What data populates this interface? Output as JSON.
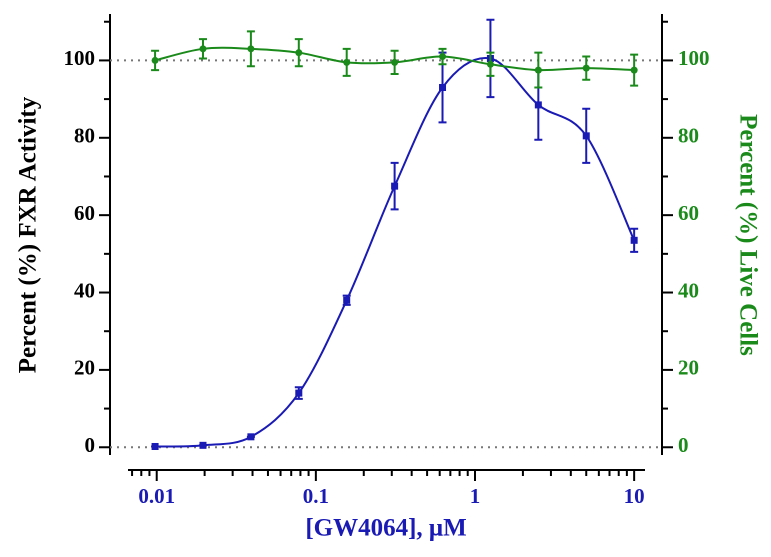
{
  "chart_data": {
    "type": "line",
    "xlabel": "[GW4064], μM",
    "ylabel": "Percent (%) FXR Activity",
    "y2label": "Percent (%) Live Cells",
    "x": [
      0.009765625,
      0.01953125,
      0.0390625,
      0.078125,
      0.15625,
      0.3125,
      0.625,
      1.25,
      2.5,
      5,
      10
    ],
    "series": [
      {
        "name": "FXR Activity",
        "color": "#1a1ab4",
        "marker": "square",
        "values": [
          0.2,
          0.5,
          2.7,
          14,
          38,
          67.5,
          93,
          100.5,
          88.5,
          80.5,
          53.5
        ],
        "errors": [
          0,
          0,
          0,
          1.5,
          1.2,
          6,
          9,
          10,
          9,
          7,
          3
        ]
      },
      {
        "name": "Live Cells",
        "color": "#1a8a1a",
        "marker": "circle",
        "axis": "y2",
        "values": [
          100,
          103,
          103,
          102,
          99.5,
          99.5,
          101,
          99,
          97.5,
          98,
          97.5
        ],
        "errors": [
          2.5,
          2.5,
          4.5,
          3.5,
          3.5,
          3,
          2,
          3,
          4.5,
          3,
          4
        ]
      }
    ],
    "xscale": "log",
    "xlim": [
      0.0066,
      11.7
    ],
    "xticks": [
      0.01,
      0.1,
      1,
      10
    ],
    "xminorticks": [
      0.007,
      0.008,
      0.009,
      0.02,
      0.03,
      0.04,
      0.05,
      0.06,
      0.07,
      0.08,
      0.09,
      0.2,
      0.3,
      0.4,
      0.5,
      0.6,
      0.7,
      0.8,
      0.9,
      2,
      3,
      4,
      5,
      6,
      7,
      8,
      9
    ],
    "ylim": [
      -2,
      112
    ],
    "yticks": [
      0,
      20,
      40,
      60,
      80,
      100
    ],
    "yminorticks": [
      10,
      30,
      50,
      70,
      90,
      110
    ],
    "y2lim": [
      -2,
      112
    ],
    "y2ticks": [
      0,
      20,
      40,
      60,
      80,
      100
    ],
    "y2minorticks": [
      10,
      30,
      50,
      70,
      90,
      110
    ],
    "hlines": [
      0,
      100
    ],
    "y2color": "#1a8a1a",
    "xcolor": "#1a1ab4"
  }
}
